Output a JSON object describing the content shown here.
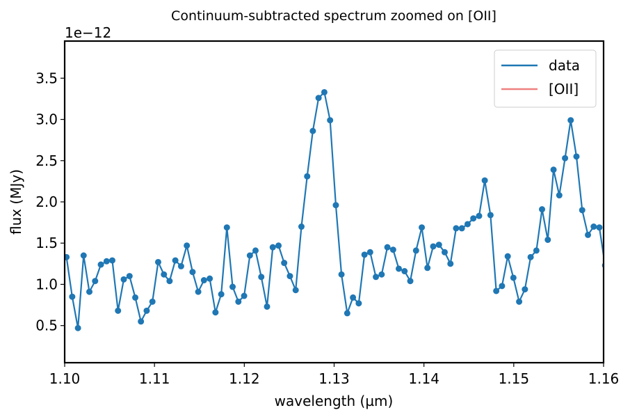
{
  "chart_data": {
    "type": "line",
    "title": "Continuum-subtracted spectrum zoomed on [OII]",
    "x_label": "wavelength (µm)",
    "y_label": "flux (MJy)",
    "y_offset_label": "1e−12",
    "x": [
      1.1002,
      1.10084,
      1.10148,
      1.10211,
      1.10275,
      1.10339,
      1.10403,
      1.10467,
      1.1053,
      1.10594,
      1.10658,
      1.10722,
      1.10786,
      1.10849,
      1.10913,
      1.10977,
      1.11041,
      1.11105,
      1.11168,
      1.11232,
      1.11296,
      1.1136,
      1.11424,
      1.11487,
      1.11551,
      1.11615,
      1.11679,
      1.11743,
      1.11806,
      1.1187,
      1.11934,
      1.11998,
      1.12062,
      1.12125,
      1.12189,
      1.12253,
      1.12317,
      1.12381,
      1.12444,
      1.12508,
      1.12572,
      1.12636,
      1.127,
      1.12763,
      1.12827,
      1.12891,
      1.12955,
      1.13019,
      1.13082,
      1.13146,
      1.1321,
      1.13274,
      1.13338,
      1.13401,
      1.13465,
      1.13529,
      1.13593,
      1.13657,
      1.1372,
      1.13784,
      1.13848,
      1.13912,
      1.13976,
      1.14039,
      1.14103,
      1.14167,
      1.14231,
      1.14295,
      1.14358,
      1.14422,
      1.14486,
      1.1455,
      1.14614,
      1.14677,
      1.14741,
      1.14805,
      1.14869,
      1.14933,
      1.14996,
      1.1506,
      1.15124,
      1.15188,
      1.15252,
      1.15315,
      1.15379,
      1.15443,
      1.15507,
      1.15571,
      1.15634,
      1.15698,
      1.15762,
      1.15826,
      1.1589,
      1.15953,
      1.16017
    ],
    "series": [
      {
        "name": "data",
        "color": "#1f77b4",
        "markers": true,
        "values": [
          1.33,
          0.85,
          0.47,
          1.35,
          0.91,
          1.04,
          1.24,
          1.28,
          1.29,
          0.68,
          1.06,
          1.1,
          0.84,
          0.55,
          0.68,
          0.79,
          1.27,
          1.12,
          1.04,
          1.29,
          1.22,
          1.47,
          1.15,
          0.91,
          1.05,
          1.07,
          0.66,
          0.88,
          1.69,
          0.97,
          0.79,
          0.86,
          1.35,
          1.41,
          1.09,
          0.73,
          1.45,
          1.47,
          1.26,
          1.1,
          0.93,
          1.7,
          2.31,
          2.86,
          3.26,
          3.33,
          2.99,
          1.96,
          1.12,
          0.65,
          0.84,
          0.77,
          1.36,
          1.39,
          1.09,
          1.12,
          1.45,
          1.42,
          1.19,
          1.16,
          1.04,
          1.41,
          1.69,
          1.2,
          1.46,
          1.48,
          1.39,
          1.25,
          1.68,
          1.68,
          1.73,
          1.8,
          1.83,
          2.26,
          1.84,
          0.92,
          0.98,
          1.34,
          1.08,
          0.79,
          0.94,
          1.33,
          1.41,
          1.91,
          1.54,
          2.39,
          2.08,
          2.53,
          2.99,
          2.55,
          1.9,
          1.6,
          1.7,
          1.69,
          1.23
        ]
      }
    ],
    "reference_lines": [
      {
        "name": "[OII]",
        "color": "#f08080"
      }
    ],
    "xlim": [
      1.1,
      1.16
    ],
    "xticks": [
      {
        "value": 1.1,
        "label": "1.10"
      },
      1.11,
      1.12,
      1.13,
      1.14,
      1.15,
      1.16
    ],
    "ylim": [
      0.05,
      3.95
    ],
    "yticks": [
      0.5,
      {
        "value": 1,
        "label": "1.0"
      },
      1.5,
      {
        "value": 2,
        "label": "2.0"
      },
      2.5,
      {
        "value": 3,
        "label": "3.0"
      },
      3.5
    ],
    "grid": false,
    "legend": "upper right"
  }
}
